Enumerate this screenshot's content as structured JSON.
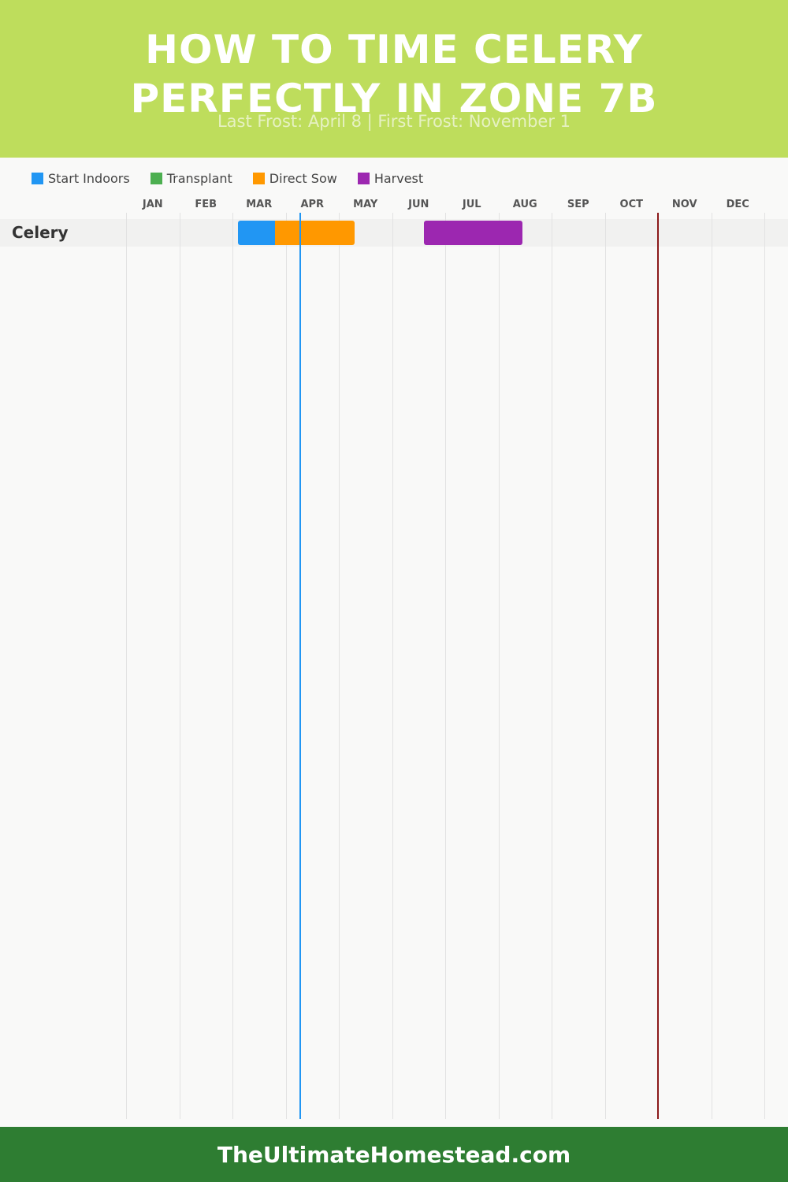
{
  "header": {
    "title_line1": "HOW TO TIME CELERY",
    "title_line2": "PERFECTLY IN ZONE 7B",
    "subtitle": "Last Frost: April 8 | First Frost: November 1"
  },
  "colors": {
    "header_bg": "#bedd5c",
    "footer_bg": "#2e7d32",
    "start_indoors": "#2196f3",
    "transplant": "#4caf50",
    "direct_sow": "#ff9800",
    "harvest": "#9c27b0",
    "last_frost_line": "#2196f3",
    "first_frost_line": "#8b1a1a"
  },
  "chart_data": {
    "type": "gantt",
    "x_axis": {
      "unit": "month",
      "range": [
        "JAN",
        "DEC"
      ],
      "months": [
        "JAN",
        "FEB",
        "MAR",
        "APR",
        "MAY",
        "JUN",
        "JUL",
        "AUG",
        "SEP",
        "OCT",
        "NOV",
        "DEC"
      ]
    },
    "legend": {
      "placement": "top-left",
      "items": [
        {
          "label": "Start Indoors",
          "key": "start_indoors"
        },
        {
          "label": "Transplant",
          "key": "transplant"
        },
        {
          "label": "Direct Sow",
          "key": "direct_sow"
        },
        {
          "label": "Harvest",
          "key": "harvest"
        }
      ]
    },
    "crops": [
      {
        "name": "Celery",
        "periods": [
          {
            "type": "start_indoors",
            "start": 3.1,
            "end": 3.8
          },
          {
            "type": "direct_sow",
            "start": 3.8,
            "end": 5.3
          },
          {
            "type": "harvest",
            "start": 6.6,
            "end": 8.45
          }
        ]
      }
    ],
    "frost_lines": [
      {
        "name": "Last Frost",
        "date": "April 8",
        "month_value": 4.27,
        "color_key": "last_frost_line"
      },
      {
        "name": "First Frost",
        "date": "November 1",
        "month_value": 11.0,
        "color_key": "first_frost_line"
      }
    ],
    "grid": true
  },
  "footer": {
    "site": "TheUltimateHomestead.com"
  }
}
